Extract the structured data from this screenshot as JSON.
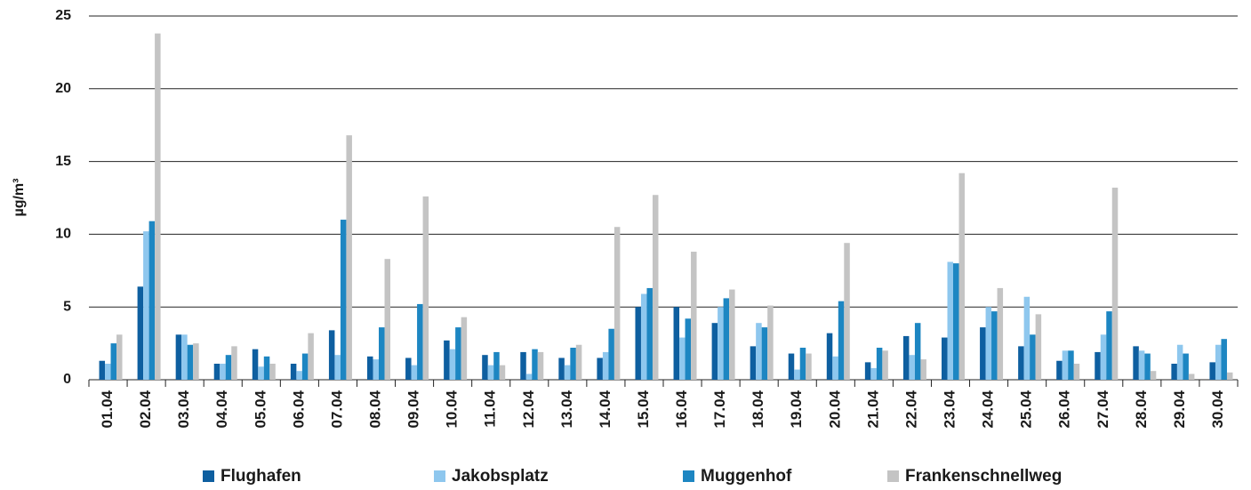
{
  "chart_data": {
    "type": "bar",
    "y_label": "µg/m³",
    "categories": [
      "01.04",
      "02.04",
      "03.04",
      "04.04",
      "05.04",
      "06.04",
      "07.04",
      "08.04",
      "09.04",
      "10.04",
      "11.04",
      "12.04",
      "13.04",
      "14.04",
      "15.04",
      "16.04",
      "17.04",
      "18.04",
      "19.04",
      "20.04",
      "21.04",
      "22.04",
      "23.04",
      "24.04",
      "25.04",
      "26.04",
      "27.04",
      "28.04",
      "29.04",
      "30.04"
    ],
    "series": [
      {
        "name": "Flughafen",
        "color": "#0e5fa0",
        "values": [
          1.3,
          6.4,
          3.1,
          1.1,
          2.1,
          1.1,
          3.4,
          1.6,
          1.5,
          2.7,
          1.7,
          1.9,
          1.5,
          1.5,
          5.0,
          5.0,
          3.9,
          2.3,
          1.8,
          3.2,
          1.2,
          3.0,
          2.9,
          3.6,
          2.3,
          1.3,
          1.9,
          2.3,
          1.1,
          1.2
        ]
      },
      {
        "name": "Jakobsplatz",
        "color": "#8ec7ee",
        "values": [
          1.1,
          10.2,
          3.1,
          1.1,
          0.9,
          0.6,
          1.7,
          1.4,
          1.0,
          2.1,
          1.0,
          0.4,
          1.0,
          1.9,
          5.9,
          2.9,
          5.0,
          3.9,
          0.7,
          1.6,
          0.8,
          1.7,
          8.1,
          5.0,
          5.7,
          2.0,
          3.1,
          2.0,
          2.4,
          2.4
        ]
      },
      {
        "name": "Muggenhof",
        "color": "#1d86c2",
        "values": [
          2.5,
          10.9,
          2.4,
          1.7,
          1.6,
          1.8,
          11.0,
          3.6,
          5.2,
          3.6,
          1.9,
          2.1,
          2.2,
          3.5,
          6.3,
          4.2,
          5.6,
          3.6,
          2.2,
          5.4,
          2.2,
          3.9,
          8.0,
          4.7,
          3.1,
          2.0,
          4.7,
          1.8,
          1.8,
          2.8
        ]
      },
      {
        "name": "Frankenschnellweg",
        "color": "#c4c4c4",
        "values": [
          3.1,
          23.8,
          2.5,
          2.3,
          1.1,
          3.2,
          16.8,
          8.3,
          12.6,
          4.3,
          1.0,
          1.9,
          2.4,
          10.5,
          12.7,
          8.8,
          6.2,
          5.1,
          1.8,
          9.4,
          2.0,
          1.4,
          14.2,
          6.3,
          4.5,
          1.1,
          13.2,
          0.6,
          0.4,
          0.5
        ]
      }
    ],
    "ylim": [
      0,
      25
    ],
    "yticks": [
      0,
      5,
      10,
      15,
      20,
      25
    ],
    "grid": true,
    "legend": "bottom"
  }
}
